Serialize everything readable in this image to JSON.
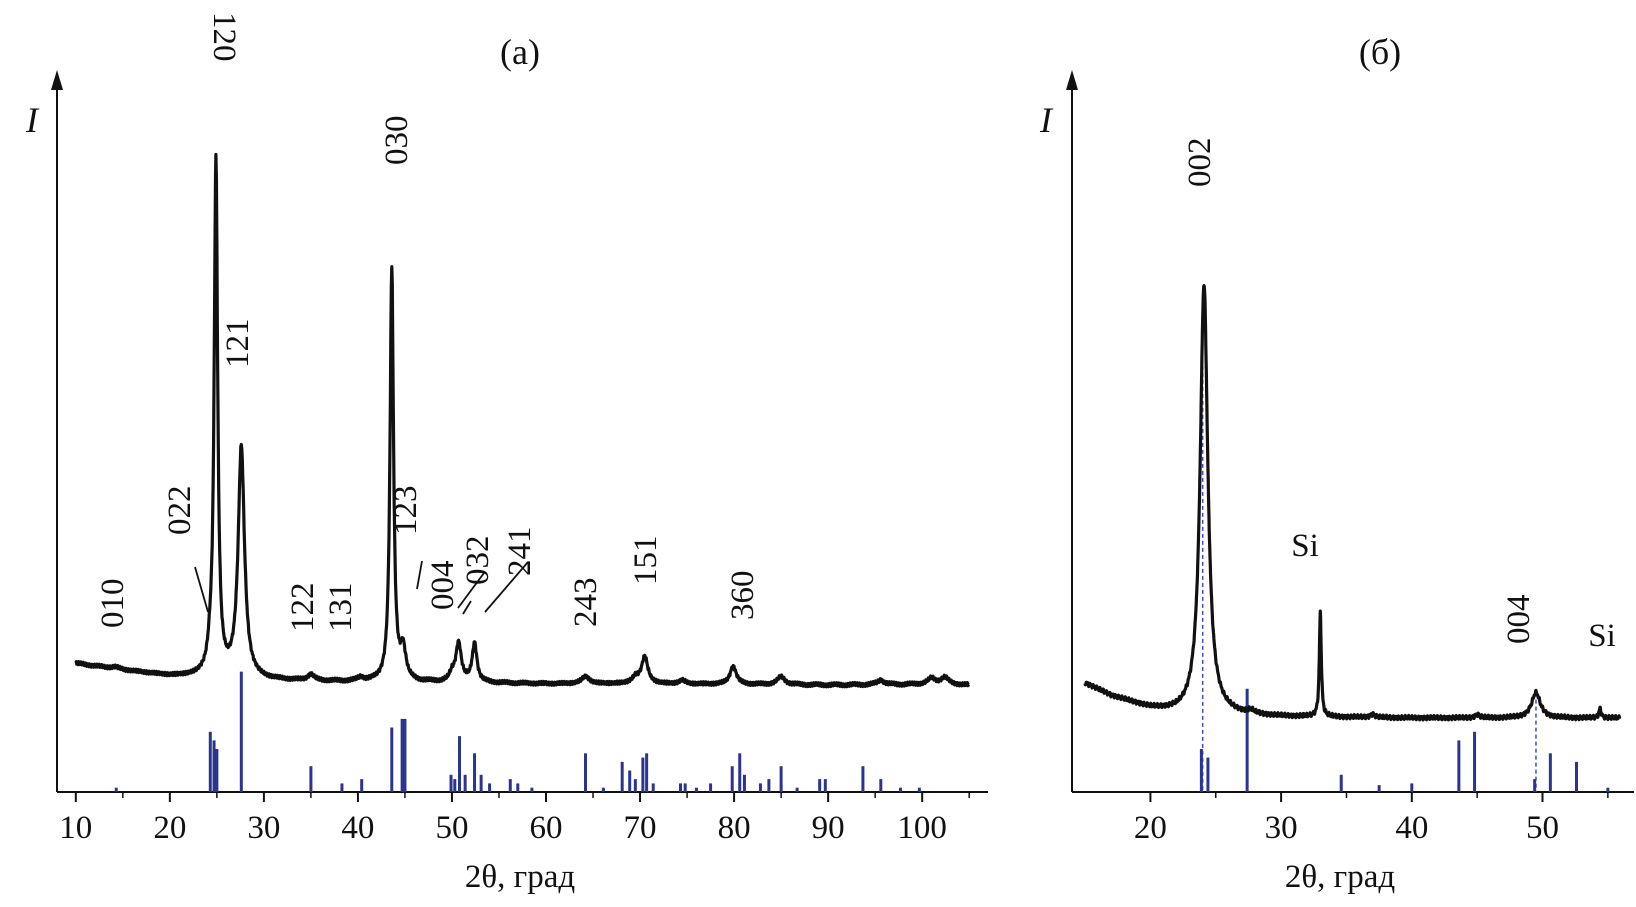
{
  "chart_data": [
    {
      "type": "line",
      "panel": "a",
      "title": "(a)",
      "xlabel": "2θ, град",
      "ylabel": "I",
      "xlim": [
        8,
        107
      ],
      "ylim": [
        0,
        100
      ],
      "xticks": [
        10,
        20,
        30,
        40,
        50,
        60,
        70,
        80,
        90,
        100
      ],
      "xtick_labels": [
        "10",
        "20",
        "30",
        "40",
        "50",
        "60",
        "70",
        "80",
        "90",
        "100"
      ],
      "baseline": {
        "x": [
          10,
          15,
          20,
          25,
          30,
          40,
          50,
          60,
          70,
          80,
          90,
          100,
          105
        ],
        "y": [
          3.6,
          2.5,
          1.5,
          1.2,
          0.8,
          0.5,
          0.4,
          0.2,
          0.2,
          0.1,
          0,
          0.1,
          0
        ]
      },
      "peaks": [
        {
          "x": 14.2,
          "y": 0.3,
          "w": 0.5,
          "label": "010"
        },
        {
          "x": 24.3,
          "y": 2.5,
          "w": 0.3,
          "label": "022"
        },
        {
          "x": 24.9,
          "y": 86.0,
          "w": 0.22,
          "label": "120"
        },
        {
          "x": 27.6,
          "y": 38.5,
          "w": 0.4,
          "label": "121"
        },
        {
          "x": 35.0,
          "y": 1.0,
          "w": 0.4,
          "label": "122"
        },
        {
          "x": 40.3,
          "y": 0.6,
          "w": 0.4,
          "label": "131"
        },
        {
          "x": 43.6,
          "y": 69.0,
          "w": 0.22,
          "label": "030"
        },
        {
          "x": 44.8,
          "y": 5.0,
          "w": 0.35,
          "label": "123"
        },
        {
          "x": 50.0,
          "y": 1.2,
          "w": 0.3,
          "label": "004"
        },
        {
          "x": 50.7,
          "y": 6.5,
          "w": 0.35,
          "label": "032"
        },
        {
          "x": 52.4,
          "y": 6.5,
          "w": 0.3,
          "label": "241"
        },
        {
          "x": 64.2,
          "y": 1.2,
          "w": 0.5,
          "label": "243"
        },
        {
          "x": 69.5,
          "y": 1.0,
          "w": 0.4,
          "label": ""
        },
        {
          "x": 70.5,
          "y": 4.5,
          "w": 0.4,
          "label": "151"
        },
        {
          "x": 74.5,
          "y": 0.6,
          "w": 0.4,
          "label": ""
        },
        {
          "x": 79.9,
          "y": 3.0,
          "w": 0.4,
          "label": "360"
        },
        {
          "x": 85.0,
          "y": 1.3,
          "w": 0.5,
          "label": ""
        },
        {
          "x": 95.6,
          "y": 0.8,
          "w": 0.4,
          "label": ""
        },
        {
          "x": 101.0,
          "y": 1.0,
          "w": 0.5,
          "label": ""
        },
        {
          "x": 102.4,
          "y": 1.2,
          "w": 0.5,
          "label": ""
        }
      ],
      "reference_lines": [
        {
          "x": 14.3,
          "h": 0.5
        },
        {
          "x": 24.3,
          "h": 7.0
        },
        {
          "x": 24.7,
          "h": 6.0
        },
        {
          "x": 25.0,
          "h": 5.0
        },
        {
          "x": 27.6,
          "h": 14.0
        },
        {
          "x": 35.0,
          "h": 3.0
        },
        {
          "x": 38.3,
          "h": 1.0
        },
        {
          "x": 40.4,
          "h": 1.5
        },
        {
          "x": 43.6,
          "h": 7.5
        },
        {
          "x": 44.7,
          "h": 8.5
        },
        {
          "x": 45.0,
          "h": 8.5
        },
        {
          "x": 49.9,
          "h": 2.0
        },
        {
          "x": 50.3,
          "h": 1.5
        },
        {
          "x": 50.8,
          "h": 6.5
        },
        {
          "x": 51.4,
          "h": 2.0
        },
        {
          "x": 52.4,
          "h": 4.5
        },
        {
          "x": 53.1,
          "h": 2.0
        },
        {
          "x": 54.0,
          "h": 1.0
        },
        {
          "x": 56.2,
          "h": 1.5
        },
        {
          "x": 57.0,
          "h": 1.0
        },
        {
          "x": 58.5,
          "h": 0.5
        },
        {
          "x": 64.2,
          "h": 4.5
        },
        {
          "x": 66.1,
          "h": 0.5
        },
        {
          "x": 68.1,
          "h": 3.5
        },
        {
          "x": 68.9,
          "h": 2.5
        },
        {
          "x": 69.5,
          "h": 1.5
        },
        {
          "x": 70.3,
          "h": 4.0
        },
        {
          "x": 70.7,
          "h": 4.5
        },
        {
          "x": 71.4,
          "h": 1.0
        },
        {
          "x": 74.3,
          "h": 1.0
        },
        {
          "x": 74.8,
          "h": 1.0
        },
        {
          "x": 76.0,
          "h": 0.5
        },
        {
          "x": 77.5,
          "h": 1.0
        },
        {
          "x": 79.8,
          "h": 3.0
        },
        {
          "x": 80.6,
          "h": 4.5
        },
        {
          "x": 81.1,
          "h": 2.0
        },
        {
          "x": 82.8,
          "h": 1.0
        },
        {
          "x": 83.7,
          "h": 1.5
        },
        {
          "x": 85.0,
          "h": 3.0
        },
        {
          "x": 86.7,
          "h": 0.5
        },
        {
          "x": 89.1,
          "h": 1.5
        },
        {
          "x": 89.7,
          "h": 1.5
        },
        {
          "x": 93.7,
          "h": 3.0
        },
        {
          "x": 95.6,
          "h": 1.5
        },
        {
          "x": 97.7,
          "h": 0.5
        },
        {
          "x": 99.7,
          "h": 0.5
        }
      ],
      "peak_labels": [
        "010",
        "022",
        "120",
        "121",
        "122",
        "131",
        "030",
        "123",
        "004",
        "032",
        "241",
        "243",
        "151",
        "360"
      ]
    },
    {
      "type": "line",
      "panel": "б",
      "title": "(б)",
      "xlabel": "2θ, град",
      "ylabel": "I",
      "xlim": [
        14,
        57
      ],
      "ylim": [
        0,
        100
      ],
      "xticks": [
        20,
        30,
        40,
        50
      ],
      "xtick_labels": [
        "20",
        "30",
        "40",
        "50"
      ],
      "baseline": {
        "x": [
          15,
          17,
          20,
          22,
          25,
          30,
          35,
          40,
          45,
          50,
          55,
          55.9
        ],
        "y": [
          5.5,
          3.5,
          1.5,
          0.8,
          0.5,
          0.2,
          0.1,
          0,
          0,
          0,
          0,
          0
        ]
      },
      "peaks": [
        {
          "x": 24.1,
          "y": 68.0,
          "w": 0.35,
          "label": "002"
        },
        {
          "x": 27.7,
          "y": 0.5,
          "w": 0.3,
          "label": ""
        },
        {
          "x": 33.0,
          "y": 16.5,
          "w": 0.09,
          "label": "Si"
        },
        {
          "x": 37.0,
          "y": 0.5,
          "w": 0.2,
          "label": ""
        },
        {
          "x": 45.0,
          "y": 0.5,
          "w": 0.2,
          "label": ""
        },
        {
          "x": 49.5,
          "y": 4.0,
          "w": 0.4,
          "label": "004"
        },
        {
          "x": 54.4,
          "y": 1.5,
          "w": 0.1,
          "label": "Si"
        }
      ],
      "reference_lines": [
        {
          "x": 23.9,
          "h": 5.0
        },
        {
          "x": 24.4,
          "h": 4.0
        },
        {
          "x": 27.4,
          "h": 12.0
        },
        {
          "x": 34.6,
          "h": 2.0
        },
        {
          "x": 37.5,
          "h": 0.8
        },
        {
          "x": 40.0,
          "h": 1.0
        },
        {
          "x": 43.6,
          "h": 6.0
        },
        {
          "x": 44.8,
          "h": 7.0
        },
        {
          "x": 49.4,
          "h": 1.5
        },
        {
          "x": 50.6,
          "h": 4.5
        },
        {
          "x": 52.6,
          "h": 3.5
        },
        {
          "x": 55.0,
          "h": 0.5
        }
      ],
      "guide_lines": [
        24.0,
        49.5
      ],
      "peak_labels": [
        "002",
        "Si",
        "004",
        "Si"
      ]
    }
  ],
  "colors": {
    "pattern": "#111111",
    "reference": "#2a3590",
    "guide": "#3b4fc8"
  }
}
